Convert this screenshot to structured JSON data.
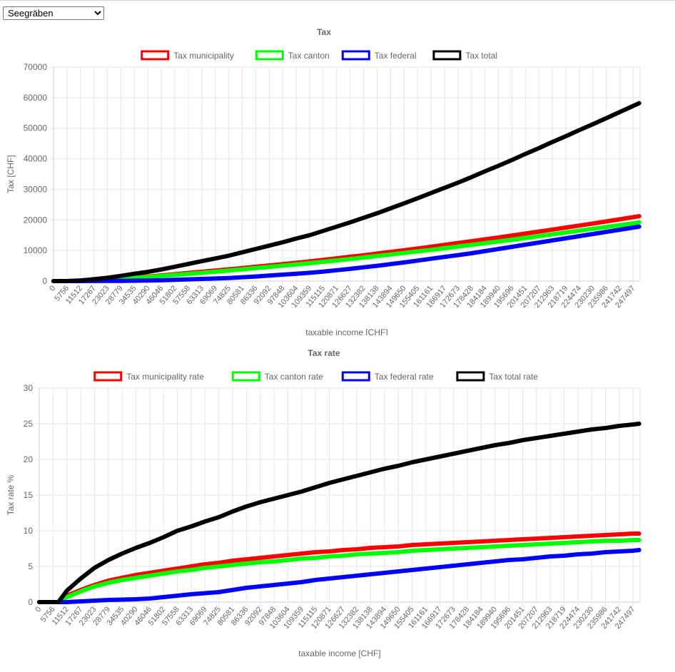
{
  "municipality_select": {
    "selected": "Seegräben"
  },
  "charts": [
    {
      "title": "Tax",
      "ylabel": "Tax [CHF]",
      "xlabel": "taxable income [CHF]",
      "chart_data": {
        "type": "line",
        "title": "Tax",
        "xlabel": "taxable income [CHF]",
        "ylabel": "Tax [CHF]",
        "ylim": [
          0,
          70000
        ],
        "y_ticks": [
          "0",
          "10000",
          "20000",
          "30000",
          "40000",
          "50000",
          "60000",
          "70000"
        ],
        "x_ticks": [
          "0",
          "5756",
          "11512",
          "17267",
          "23023",
          "28779",
          "34535",
          "40290",
          "46046",
          "51802",
          "57558",
          "63313",
          "69069",
          "74825",
          "80581",
          "86336",
          "92092",
          "97848",
          "103604",
          "109359",
          "115115",
          "120871",
          "126627",
          "132382",
          "138138",
          "143894",
          "149650",
          "155405",
          "161161",
          "166917",
          "172673",
          "178428",
          "184184",
          "189940",
          "195696",
          "201451",
          "207207",
          "212963",
          "218719",
          "224474",
          "230230",
          "235986",
          "241742",
          "247497"
        ],
        "xlim": [
          0,
          250000
        ],
        "grid": true,
        "legend": "top",
        "series": [
          {
            "name": "Tax municipality",
            "color": "#ff0000",
            "x": [
              0,
              5756,
              11512,
              17267,
              23023,
              28779,
              34535,
              40290,
              46046,
              51802,
              57558,
              63313,
              69069,
              74825,
              80581,
              86336,
              92092,
              97848,
              103604,
              109359,
              115115,
              120871,
              126627,
              132382,
              138138,
              143894,
              149650,
              155405,
              161161,
              166917,
              172673,
              178428,
              184184,
              189940,
              195696,
              201451,
              207207,
              212963,
              218719,
              224474,
              230230,
              235986,
              241742,
              247497,
              250000
            ],
            "y": [
              0,
              0,
              100,
              300,
              550,
              850,
              1200,
              1500,
              1850,
              2250,
              2650,
              3050,
              3450,
              3850,
              4250,
              4700,
              5100,
              5550,
              6000,
              6450,
              6950,
              7450,
              7950,
              8450,
              9000,
              9550,
              10100,
              10650,
              11250,
              11850,
              12450,
              13050,
              13650,
              14250,
              14900,
              15550,
              16200,
              16850,
              17500,
              18150,
              18800,
              19500,
              20200,
              20900,
              21200
            ]
          },
          {
            "name": "Tax canton",
            "color": "#00ff00",
            "x": [
              0,
              5756,
              11512,
              17267,
              23023,
              28779,
              34535,
              40290,
              46046,
              51802,
              57558,
              63313,
              69069,
              74825,
              80581,
              86336,
              92092,
              97848,
              103604,
              109359,
              115115,
              120871,
              126627,
              132382,
              138138,
              143894,
              149650,
              155405,
              161161,
              166917,
              172673,
              178428,
              184184,
              189940,
              195696,
              201451,
              207207,
              212963,
              218719,
              224474,
              230230,
              235986,
              241742,
              247497,
              250000
            ],
            "y": [
              0,
              0,
              80,
              260,
              500,
              750,
              1050,
              1350,
              1650,
              2000,
              2350,
              2700,
              3050,
              3450,
              3850,
              4250,
              4650,
              5050,
              5450,
              5850,
              6300,
              6750,
              7200,
              7700,
              8200,
              8700,
              9200,
              9700,
              10200,
              10750,
              11300,
              11850,
              12400,
              12950,
              13500,
              14100,
              14700,
              15300,
              15900,
              16500,
              17100,
              17700,
              18300,
              18900,
              19200
            ]
          },
          {
            "name": "Tax federal",
            "color": "#0000ff",
            "x": [
              0,
              5756,
              11512,
              17267,
              23023,
              28779,
              34535,
              40290,
              46046,
              51802,
              57558,
              63313,
              69069,
              74825,
              80581,
              86336,
              92092,
              97848,
              103604,
              109359,
              115115,
              120871,
              126627,
              132382,
              138138,
              143894,
              149650,
              155405,
              161161,
              166917,
              172673,
              178428,
              184184,
              189940,
              195696,
              201451,
              207207,
              212963,
              218719,
              224474,
              230230,
              235986,
              241742,
              247497,
              250000
            ],
            "y": [
              0,
              0,
              0,
              20,
              50,
              80,
              120,
              170,
              250,
              400,
              550,
              700,
              850,
              1000,
              1250,
              1500,
              1800,
              2100,
              2400,
              2700,
              3100,
              3550,
              4000,
              4500,
              5000,
              5550,
              6100,
              6700,
              7300,
              7900,
              8500,
              9100,
              9800,
              10500,
              11200,
              11900,
              12600,
              13300,
              14000,
              14700,
              15400,
              16100,
              16800,
              17500,
              17800
            ]
          },
          {
            "name": "Tax total",
            "color": "#000000",
            "x": [
              0,
              5756,
              11512,
              17267,
              23023,
              28779,
              34535,
              40290,
              46046,
              51802,
              57558,
              63313,
              69069,
              74825,
              80581,
              86336,
              92092,
              97848,
              103604,
              109359,
              115115,
              120871,
              126627,
              132382,
              138138,
              143894,
              149650,
              155405,
              161161,
              166917,
              172673,
              178428,
              184184,
              189940,
              195696,
              201451,
              207207,
              212963,
              218719,
              224474,
              230230,
              235986,
              241742,
              247497,
              250000
            ],
            "y": [
              0,
              0,
              200,
              600,
              1100,
              1700,
              2400,
              3000,
              3800,
              4700,
              5600,
              6500,
              7400,
              8300,
              9400,
              10500,
              11600,
              12700,
              13900,
              15000,
              16400,
              17800,
              19200,
              20700,
              22200,
              23800,
              25400,
              27100,
              28800,
              30500,
              32200,
              34000,
              35900,
              37700,
              39600,
              41600,
              43500,
              45500,
              47400,
              49400,
              51300,
              53300,
              55300,
              57300,
              58200
            ]
          }
        ]
      },
      "legend_labels": [
        "Tax municipality",
        "Tax canton",
        "Tax federal",
        "Tax total"
      ]
    },
    {
      "title": "Tax rate",
      "ylabel": "Tax rate %",
      "xlabel": "taxable income [CHF]",
      "chart_data": {
        "type": "line",
        "title": "Tax rate",
        "xlabel": "taxable income [CHF]",
        "ylabel": "Tax rate %",
        "ylim": [
          0,
          30
        ],
        "y_ticks": [
          "0",
          "5",
          "10",
          "15",
          "20",
          "25",
          "30"
        ],
        "x_ticks": [
          "0",
          "5756",
          "11512",
          "17267",
          "23023",
          "28779",
          "34535",
          "40290",
          "46046",
          "51802",
          "57558",
          "63313",
          "69069",
          "74825",
          "80581",
          "86336",
          "92092",
          "97848",
          "103604",
          "109359",
          "115115",
          "120871",
          "126627",
          "132382",
          "138138",
          "143894",
          "149650",
          "155405",
          "161161",
          "166917",
          "172673",
          "178428",
          "184184",
          "189940",
          "195696",
          "201451",
          "207207",
          "212963",
          "218719",
          "224474",
          "230230",
          "235986",
          "241742",
          "247497"
        ],
        "xlim": [
          0,
          250000
        ],
        "grid": true,
        "legend": "top",
        "series": [
          {
            "name": "Tax municipality rate",
            "color": "#ff0000",
            "x": [
              0,
              5756,
              8000,
              11512,
              17267,
              23023,
              28779,
              34535,
              40290,
              46046,
              51802,
              57558,
              63313,
              69069,
              74825,
              80581,
              86336,
              92092,
              97848,
              103604,
              109359,
              115115,
              120871,
              126627,
              132382,
              138138,
              143894,
              149650,
              155405,
              161161,
              166917,
              172673,
              178428,
              184184,
              189940,
              195696,
              201451,
              207207,
              212963,
              218719,
              224474,
              230230,
              235986,
              241742,
              247497,
              250000
            ],
            "y": [
              0,
              0,
              0,
              0.9,
              1.7,
              2.4,
              3.0,
              3.4,
              3.8,
              4.1,
              4.4,
              4.7,
              5.0,
              5.3,
              5.5,
              5.8,
              6.0,
              6.2,
              6.4,
              6.6,
              6.8,
              7.0,
              7.1,
              7.3,
              7.4,
              7.6,
              7.7,
              7.8,
              8.0,
              8.1,
              8.2,
              8.3,
              8.4,
              8.5,
              8.6,
              8.7,
              8.8,
              8.9,
              9.0,
              9.1,
              9.2,
              9.3,
              9.4,
              9.5,
              9.6,
              9.6
            ]
          },
          {
            "name": "Tax canton rate",
            "color": "#00ff00",
            "x": [
              0,
              5756,
              8000,
              11512,
              17267,
              23023,
              28779,
              34535,
              40290,
              46046,
              51802,
              57558,
              63313,
              69069,
              74825,
              80581,
              86336,
              92092,
              97848,
              103604,
              109359,
              115115,
              120871,
              126627,
              132382,
              138138,
              143894,
              149650,
              155405,
              161161,
              166917,
              172673,
              178428,
              184184,
              189940,
              195696,
              201451,
              207207,
              212963,
              218719,
              224474,
              230230,
              235986,
              241742,
              247497,
              250000
            ],
            "y": [
              0,
              0,
              0,
              0.7,
              1.5,
              2.2,
              2.7,
              3.1,
              3.4,
              3.7,
              4.0,
              4.3,
              4.5,
              4.8,
              5.0,
              5.2,
              5.4,
              5.6,
              5.7,
              5.9,
              6.1,
              6.2,
              6.4,
              6.5,
              6.7,
              6.8,
              6.9,
              7.0,
              7.2,
              7.3,
              7.4,
              7.5,
              7.6,
              7.7,
              7.8,
              7.9,
              8.0,
              8.1,
              8.2,
              8.3,
              8.4,
              8.5,
              8.6,
              8.6,
              8.7,
              8.7
            ]
          },
          {
            "name": "Tax federal rate",
            "color": "#0000ff",
            "x": [
              0,
              5756,
              8000,
              11512,
              17267,
              23023,
              28779,
              34535,
              40290,
              46046,
              51802,
              57558,
              63313,
              69069,
              74825,
              80581,
              86336,
              92092,
              97848,
              103604,
              109359,
              115115,
              120871,
              126627,
              132382,
              138138,
              143894,
              149650,
              155405,
              161161,
              166917,
              172673,
              178428,
              184184,
              189940,
              195696,
              201451,
              207207,
              212963,
              218719,
              224474,
              230230,
              235986,
              241742,
              247497,
              250000
            ],
            "y": [
              0,
              0,
              0,
              0,
              0.1,
              0.2,
              0.3,
              0.35,
              0.4,
              0.5,
              0.7,
              0.9,
              1.1,
              1.25,
              1.4,
              1.7,
              2.0,
              2.2,
              2.4,
              2.6,
              2.8,
              3.1,
              3.3,
              3.5,
              3.7,
              3.9,
              4.1,
              4.3,
              4.5,
              4.7,
              4.9,
              5.1,
              5.3,
              5.5,
              5.7,
              5.9,
              6.0,
              6.2,
              6.4,
              6.5,
              6.7,
              6.8,
              7.0,
              7.1,
              7.2,
              7.3
            ]
          },
          {
            "name": "Tax total rate",
            "color": "#000000",
            "x": [
              0,
              5756,
              8000,
              11512,
              17267,
              23023,
              28779,
              34535,
              40290,
              46046,
              51802,
              57558,
              63313,
              69069,
              74825,
              80581,
              86336,
              92092,
              97848,
              103604,
              109359,
              115115,
              120871,
              126627,
              132382,
              138138,
              143894,
              149650,
              155405,
              161161,
              166917,
              172673,
              178428,
              184184,
              189940,
              195696,
              201451,
              207207,
              212963,
              218719,
              224474,
              230230,
              235986,
              241742,
              247497,
              250000
            ],
            "y": [
              0,
              0,
              0,
              1.6,
              3.3,
              4.8,
              5.9,
              6.8,
              7.6,
              8.3,
              9.1,
              10.0,
              10.6,
              11.3,
              11.9,
              12.7,
              13.4,
              14.0,
              14.5,
              15.0,
              15.5,
              16.1,
              16.7,
              17.2,
              17.7,
              18.2,
              18.7,
              19.1,
              19.6,
              20.0,
              20.4,
              20.8,
              21.2,
              21.6,
              22.0,
              22.3,
              22.7,
              23.0,
              23.3,
              23.6,
              23.9,
              24.2,
              24.4,
              24.7,
              24.9,
              25.0
            ]
          }
        ]
      },
      "legend_labels": [
        "Tax municipality rate",
        "Tax canton rate",
        "Tax federal rate",
        "Tax total rate"
      ]
    }
  ]
}
